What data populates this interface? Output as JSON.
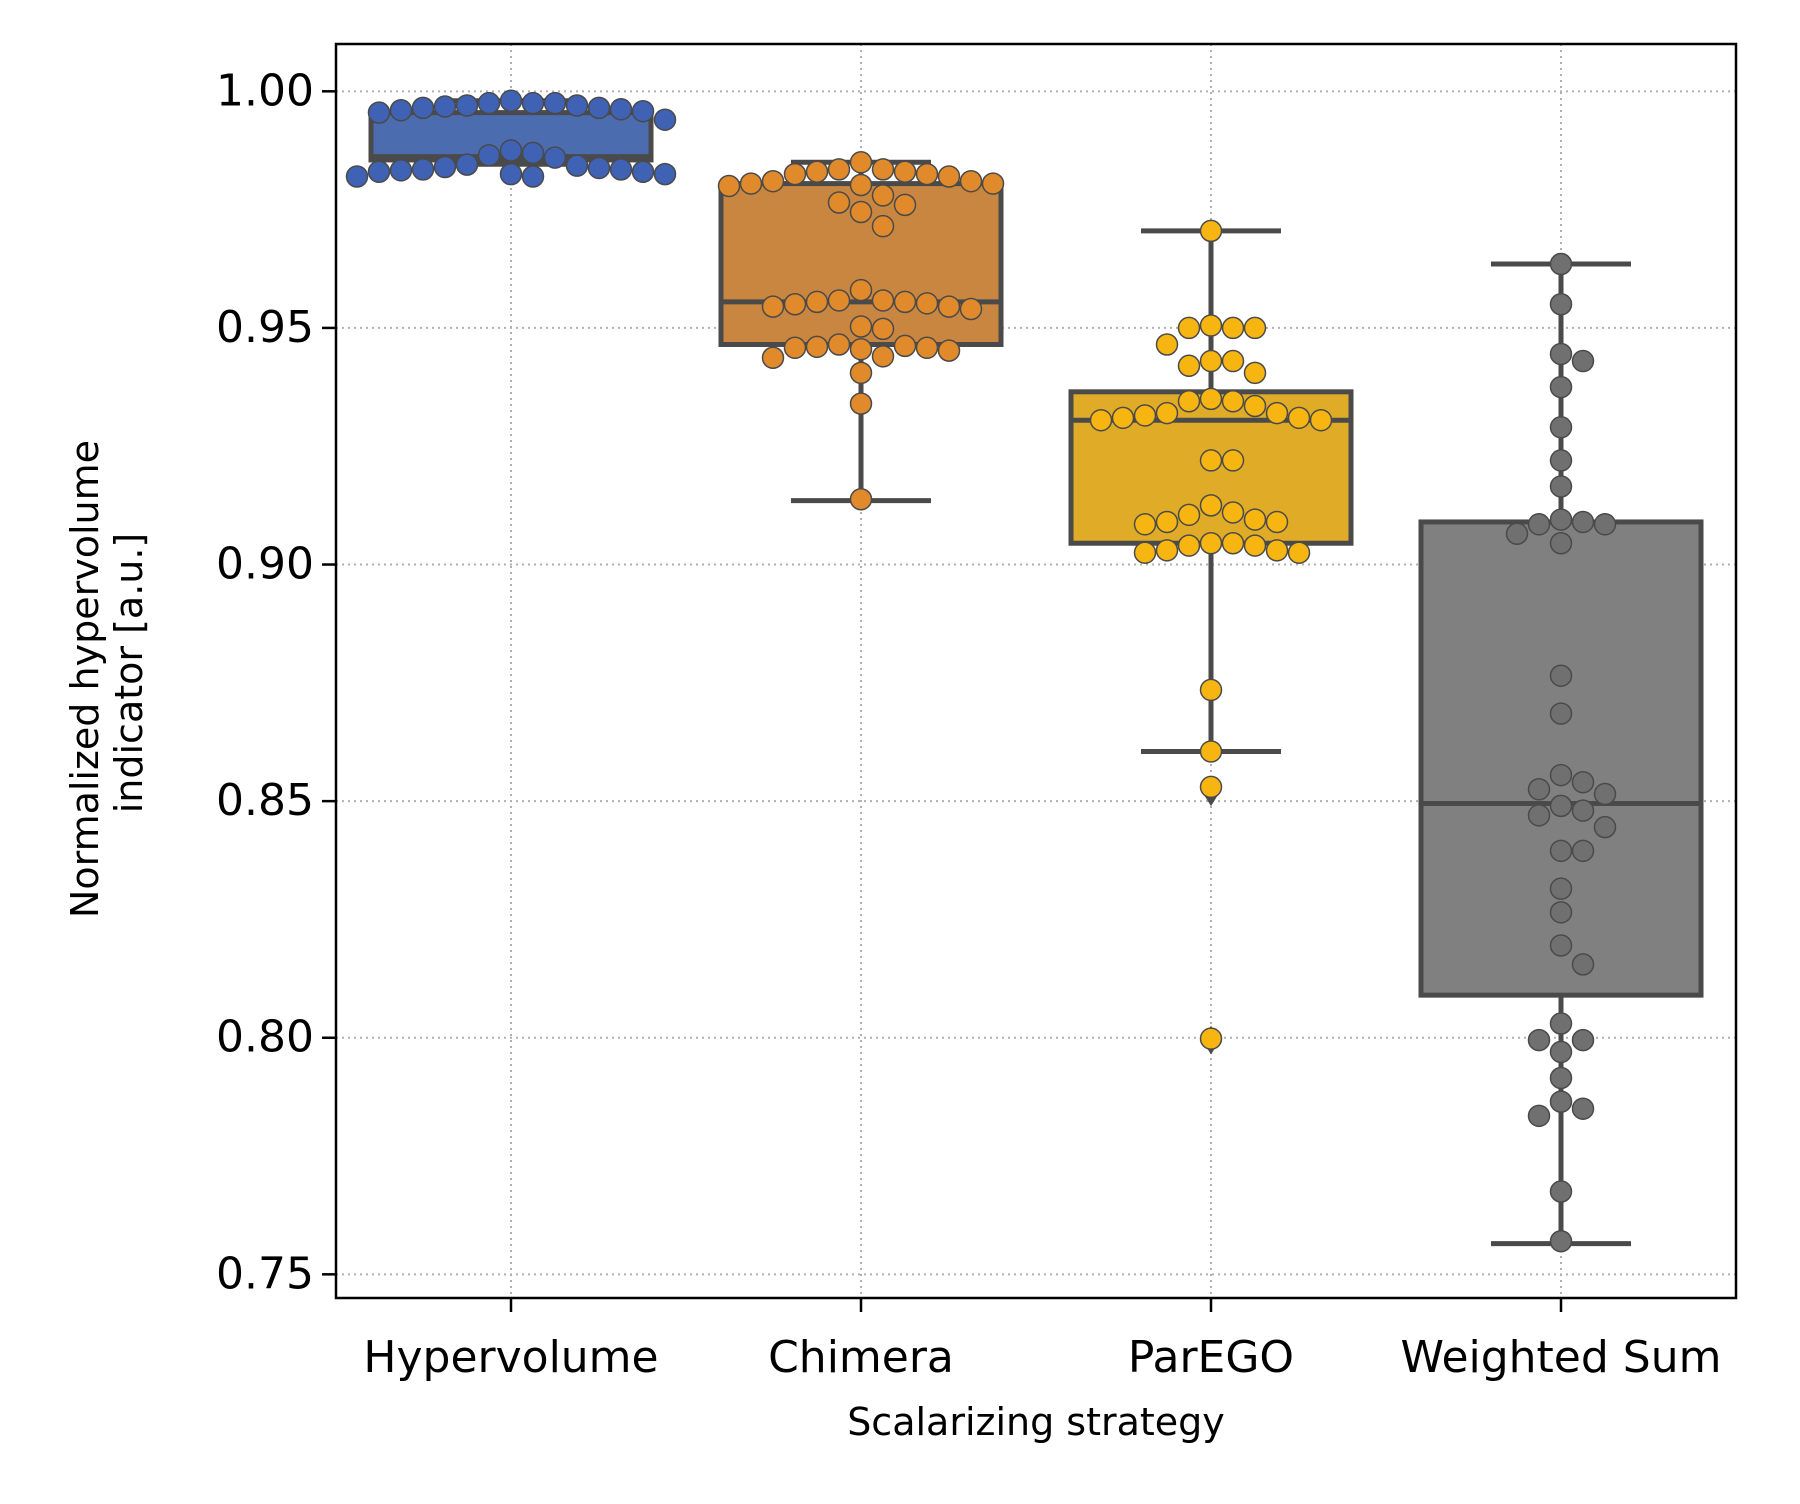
{
  "chart_data": {
    "type": "box",
    "title": "",
    "xlabel": "Scalarizing strategy",
    "ylabel_lines": [
      "Normalized hypervolume",
      "indicator [a.u.]"
    ],
    "ylim": [
      0.745,
      1.01
    ],
    "yticks": [
      0.75,
      0.8,
      0.85,
      0.9,
      0.95,
      1.0
    ],
    "ytick_labels": [
      "0.75",
      "0.80",
      "0.85",
      "0.90",
      "0.95",
      "1.00"
    ],
    "grid": true,
    "legend": "none",
    "categories": [
      "Hypervolume",
      "Chimera",
      "ParEGO",
      "Weighted Sum"
    ],
    "colors": [
      "#4c6cb0",
      "#c98640",
      "#e0ac27",
      "#808080"
    ],
    "point_colors": [
      "#3f62b5",
      "#e08a2c",
      "#f7b512",
      "#707070"
    ],
    "line_color": "#4a4a4a",
    "boxes": [
      {
        "name": "Hypervolume",
        "whisker_low": 0.9846,
        "q1": 0.9855,
        "median": 0.9862,
        "q3": 0.9955,
        "whisker_high": 0.998
      },
      {
        "name": "Chimera",
        "whisker_low": 0.9135,
        "q1": 0.9465,
        "median": 0.9555,
        "q3": 0.9805,
        "whisker_high": 0.985
      },
      {
        "name": "ParEGO",
        "whisker_low": 0.8605,
        "q1": 0.9045,
        "median": 0.9305,
        "q3": 0.9365,
        "whisker_high": 0.9705
      },
      {
        "name": "Weighted Sum",
        "whisker_low": 0.7565,
        "q1": 0.809,
        "median": 0.8495,
        "q3": 0.909,
        "whisker_high": 0.9635
      }
    ],
    "outliers": [
      {
        "category": "ParEGO",
        "values": [
          0.852,
          0.7995
        ]
      }
    ],
    "swarm": [
      {
        "category": "Hypervolume",
        "values": [
          0.998,
          0.9975,
          0.997,
          0.9968,
          0.9965,
          0.9962,
          0.996,
          0.9958,
          0.9965,
          0.997,
          0.9975,
          0.9975,
          0.994,
          0.9955,
          0.9875,
          0.987,
          0.9865,
          0.9843,
          0.9838,
          0.9835,
          0.9833,
          0.983,
          0.9825,
          0.982,
          0.982,
          0.9825,
          0.983,
          0.9835,
          0.984,
          0.9845,
          0.986
        ]
      },
      {
        "category": "Chimera",
        "values": [
          0.9835,
          0.983,
          0.9825,
          0.981,
          0.9805,
          0.9802,
          0.98,
          0.981,
          0.9805,
          0.982,
          0.9825,
          0.983,
          0.9835,
          0.985,
          0.978,
          0.9745,
          0.9715,
          0.976,
          0.9765,
          0.9558,
          0.9555,
          0.9552,
          0.955,
          0.9545,
          0.954,
          0.9545,
          0.9555,
          0.9558,
          0.958,
          0.9503,
          0.9498,
          0.9465,
          0.946,
          0.9458,
          0.9455,
          0.9437,
          0.944,
          0.9452,
          0.9458,
          0.9462,
          0.9405,
          0.934,
          0.9138
        ]
      },
      {
        "category": "ParEGO",
        "values": [
          0.9705,
          0.9505,
          0.95,
          0.9465,
          0.95,
          0.95,
          0.942,
          0.9405,
          0.943,
          0.943,
          0.935,
          0.9335,
          0.932,
          0.931,
          0.9305,
          0.9305,
          0.931,
          0.9315,
          0.932,
          0.9345,
          0.9345,
          0.922,
          0.922,
          0.9125,
          0.9105,
          0.909,
          0.9085,
          0.909,
          0.9095,
          0.911,
          0.9045,
          0.904,
          0.903,
          0.9025,
          0.9025,
          0.903,
          0.904,
          0.9045,
          0.8735,
          0.8605,
          0.853,
          0.7998
        ]
      },
      {
        "category": "Weighted Sum",
        "values": [
          0.9635,
          0.955,
          0.9445,
          0.943,
          0.9375,
          0.929,
          0.922,
          0.9165,
          0.9095,
          0.9085,
          0.9085,
          0.909,
          0.9065,
          0.9045,
          0.8765,
          0.8685,
          0.8555,
          0.8525,
          0.8515,
          0.854,
          0.849,
          0.848,
          0.847,
          0.8445,
          0.8395,
          0.8395,
          0.8315,
          0.8265,
          0.8195,
          0.8155,
          0.803,
          0.7995,
          0.7995,
          0.797,
          0.7915,
          0.7865,
          0.785,
          0.7835,
          0.7675,
          0.757
        ]
      }
    ]
  }
}
